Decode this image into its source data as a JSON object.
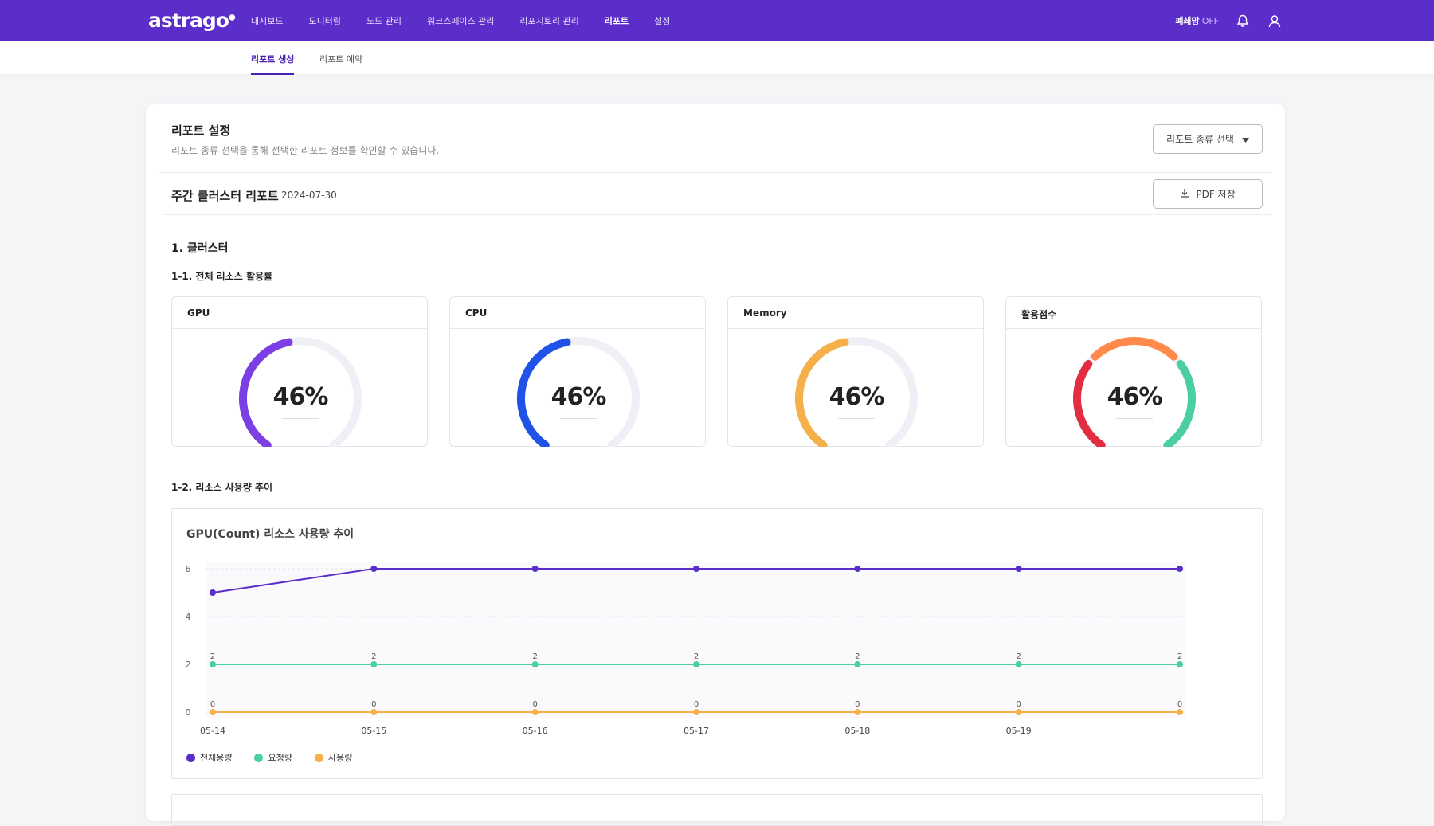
{
  "app": {
    "logo": "astrago",
    "nav": [
      "대시보드",
      "모니터링",
      "노드 관리",
      "워크스페이스 관리",
      "리포지토리 관리",
      "리포트",
      "설정"
    ],
    "active_nav": "리포트",
    "closed_network_label": "폐쇄망",
    "closed_network_state": "OFF"
  },
  "subtabs": [
    "리포트 생성",
    "리포트 예약"
  ],
  "settings": {
    "title": "리포트 설정",
    "description": "리포트 종류 선택을 통해 선택한 리포트 정보를 확인할 수 있습니다.",
    "select_label": "리포트 종류 선택"
  },
  "report": {
    "title": "주간 클러스터 리포트",
    "date": "2024-07-30",
    "pdf_label": "PDF 저장"
  },
  "section1": {
    "title": "1. 클러스터",
    "sub1": "1-1. 전체 리소스 활용률",
    "sub2": "1-2. 리소스 사용량 추이"
  },
  "gauges": [
    {
      "title": "GPU",
      "value": "46%",
      "percent": 46,
      "color": "#7b3fe4"
    },
    {
      "title": "CPU",
      "value": "46%",
      "percent": 46,
      "color": "#2152e8"
    },
    {
      "title": "Memory",
      "value": "46%",
      "percent": 46,
      "color": "#f6b04a"
    },
    {
      "title": "활용점수",
      "value": "46%",
      "percent": 46,
      "colors": [
        "#e32d42",
        "#ff8a4a",
        "#4ccfa0"
      ]
    }
  ],
  "chart_data": {
    "type": "line",
    "title": "GPU(Count) 리소스 사용량 추이",
    "categories": [
      "05-14",
      "05-15",
      "05-16",
      "05-17",
      "05-18",
      "05-19",
      ""
    ],
    "ylim": [
      0,
      6
    ],
    "yticks": [
      0,
      2,
      4,
      6
    ],
    "series": [
      {
        "name": "전체용량",
        "values": [
          5,
          6,
          6,
          6,
          6,
          6,
          6
        ],
        "color": "#5b2dc9",
        "labels": false
      },
      {
        "name": "요청량",
        "values": [
          2,
          2,
          2,
          2,
          2,
          2,
          2
        ],
        "color": "#4ccfa0",
        "labels": true
      },
      {
        "name": "사용량",
        "values": [
          0,
          0,
          0,
          0,
          0,
          0,
          0
        ],
        "color": "#f6b04a",
        "labels": true
      }
    ]
  }
}
